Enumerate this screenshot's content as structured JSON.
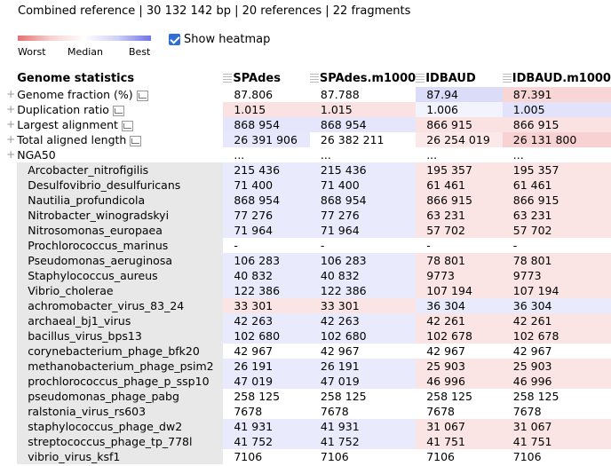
{
  "summary": "Combined reference | 30 132 142 bp | 20 references | 22 fragments",
  "legend": {
    "worst": "Worst",
    "median": "Median",
    "best": "Best"
  },
  "heatmap": {
    "label": "Show heatmap",
    "checked": true
  },
  "colors": {
    "worst": "#e87070",
    "median": "#ffffff",
    "best": "#6f74e8",
    "sub_bg": "#e8e8e8",
    "checkbox": "#2f6fd3"
  },
  "table": {
    "header": "Genome statistics",
    "columns": [
      "SPAdes",
      "SPAdes.m1000",
      "IDBAUD",
      "IDBAUD.m1000"
    ],
    "metrics": [
      {
        "name": "Genome fraction (%)",
        "values": [
          "87.806",
          "87.788",
          "87.94",
          "87.391"
        ],
        "colors": [
          "#ffffff",
          "#ffffff",
          "#dadcf8",
          "#f9d6d6"
        ]
      },
      {
        "name": "Duplication ratio",
        "values": [
          "1.015",
          "1.015",
          "1.006",
          "1.005"
        ],
        "colors": [
          "#fbe2e2",
          "#fbe2e2",
          "#f3f3fd",
          "#e2e3fa"
        ]
      },
      {
        "name": "Largest alignment",
        "values": [
          "868 954",
          "868 954",
          "866 915",
          "866 915"
        ],
        "colors": [
          "#e5e6fb",
          "#e5e6fb",
          "#fbe2e2",
          "#fbe2e2"
        ]
      },
      {
        "name": "Total aligned length",
        "values": [
          "26 391 906",
          "26 382 211",
          "26 254 019",
          "26 131 800"
        ],
        "colors": [
          "#e7e8fb",
          "#ffffff",
          "#fbe8e8",
          "#f8d2d2"
        ]
      }
    ],
    "nga50": {
      "name": "NGA50",
      "values": [
        "...",
        "...",
        "...",
        "..."
      ]
    },
    "references": [
      {
        "name": "Arcobacter_nitrofigilis",
        "values": [
          "215 436",
          "215 436",
          "195 357",
          "195 357"
        ],
        "colors": [
          "#e9eafb",
          "#e9eafb",
          "#fbe4e4",
          "#fbe4e4"
        ]
      },
      {
        "name": "Desulfovibrio_desulfuricans",
        "values": [
          "71 400",
          "71 400",
          "61 461",
          "61 461"
        ],
        "colors": [
          "#e9eafb",
          "#e9eafb",
          "#fbe4e4",
          "#fbe4e4"
        ]
      },
      {
        "name": "Nautilia_profundicola",
        "values": [
          "868 954",
          "868 954",
          "866 915",
          "866 915"
        ],
        "colors": [
          "#e9eafb",
          "#e9eafb",
          "#fbe4e4",
          "#fbe4e4"
        ]
      },
      {
        "name": "Nitrobacter_winogradskyi",
        "values": [
          "77 276",
          "77 276",
          "63 231",
          "63 231"
        ],
        "colors": [
          "#e9eafb",
          "#e9eafb",
          "#fbe4e4",
          "#fbe4e4"
        ]
      },
      {
        "name": "Nitrosomonas_europaea",
        "values": [
          "71 964",
          "71 964",
          "57 702",
          "57 702"
        ],
        "colors": [
          "#e9eafb",
          "#e9eafb",
          "#fbe4e4",
          "#fbe4e4"
        ]
      },
      {
        "name": "Prochlorococcus_marinus",
        "values": [
          "-",
          "-",
          "-",
          "-"
        ],
        "colors": [
          "#ffffff",
          "#ffffff",
          "#ffffff",
          "#ffffff"
        ]
      },
      {
        "name": "Pseudomonas_aeruginosa",
        "values": [
          "106 283",
          "106 283",
          "78 801",
          "78 801"
        ],
        "colors": [
          "#e9eafb",
          "#e9eafb",
          "#fbe4e4",
          "#fbe4e4"
        ]
      },
      {
        "name": "Staphylococcus_aureus",
        "values": [
          "40 832",
          "40 832",
          "9773",
          "9773"
        ],
        "colors": [
          "#e9eafb",
          "#e9eafb",
          "#fbe4e4",
          "#fbe4e4"
        ]
      },
      {
        "name": "Vibrio_cholerae",
        "values": [
          "122 386",
          "122 386",
          "107 194",
          "107 194"
        ],
        "colors": [
          "#e9eafb",
          "#e9eafb",
          "#fbe4e4",
          "#fbe4e4"
        ]
      },
      {
        "name": "achromobacter_virus_83_24",
        "values": [
          "33 301",
          "33 301",
          "36 304",
          "36 304"
        ],
        "colors": [
          "#fbe4e4",
          "#fbe4e4",
          "#e9eafb",
          "#e9eafb"
        ]
      },
      {
        "name": "archaeal_bj1_virus",
        "values": [
          "42 263",
          "42 263",
          "42 261",
          "42 261"
        ],
        "colors": [
          "#e9eafb",
          "#e9eafb",
          "#fbe4e4",
          "#fbe4e4"
        ]
      },
      {
        "name": "bacillus_virus_bps13",
        "values": [
          "102 680",
          "102 680",
          "102 678",
          "102 678"
        ],
        "colors": [
          "#e9eafb",
          "#e9eafb",
          "#fbe4e4",
          "#fbe4e4"
        ]
      },
      {
        "name": "corynebacterium_phage_bfk20",
        "values": [
          "42 967",
          "42 967",
          "42 967",
          "42 967"
        ],
        "colors": [
          "#ffffff",
          "#ffffff",
          "#ffffff",
          "#ffffff"
        ]
      },
      {
        "name": "methanobacterium_phage_psim2",
        "values": [
          "26 191",
          "26 191",
          "25 903",
          "25 903"
        ],
        "colors": [
          "#e9eafb",
          "#e9eafb",
          "#fbe4e4",
          "#fbe4e4"
        ]
      },
      {
        "name": "prochlorococcus_phage_p_ssp10",
        "values": [
          "47 019",
          "47 019",
          "46 996",
          "46 996"
        ],
        "colors": [
          "#e9eafb",
          "#e9eafb",
          "#fbe4e4",
          "#fbe4e4"
        ]
      },
      {
        "name": "pseudomonas_phage_pabg",
        "values": [
          "258 125",
          "258 125",
          "258 125",
          "258 125"
        ],
        "colors": [
          "#ffffff",
          "#ffffff",
          "#ffffff",
          "#ffffff"
        ]
      },
      {
        "name": "ralstonia_virus_rs603",
        "values": [
          "7678",
          "7678",
          "7678",
          "7678"
        ],
        "colors": [
          "#ffffff",
          "#ffffff",
          "#ffffff",
          "#ffffff"
        ]
      },
      {
        "name": "staphylococcus_phage_dw2",
        "values": [
          "41 931",
          "41 931",
          "31 067",
          "31 067"
        ],
        "colors": [
          "#e9eafb",
          "#e9eafb",
          "#fbe4e4",
          "#fbe4e4"
        ]
      },
      {
        "name": "streptococcus_phage_tp_778l",
        "values": [
          "41 752",
          "41 752",
          "41 751",
          "41 751"
        ],
        "colors": [
          "#e9eafb",
          "#e9eafb",
          "#fbe4e4",
          "#fbe4e4"
        ]
      },
      {
        "name": "vibrio_virus_ksf1",
        "values": [
          "7106",
          "7106",
          "7106",
          "7106"
        ],
        "colors": [
          "#ffffff",
          "#ffffff",
          "#ffffff",
          "#ffffff"
        ]
      }
    ]
  }
}
